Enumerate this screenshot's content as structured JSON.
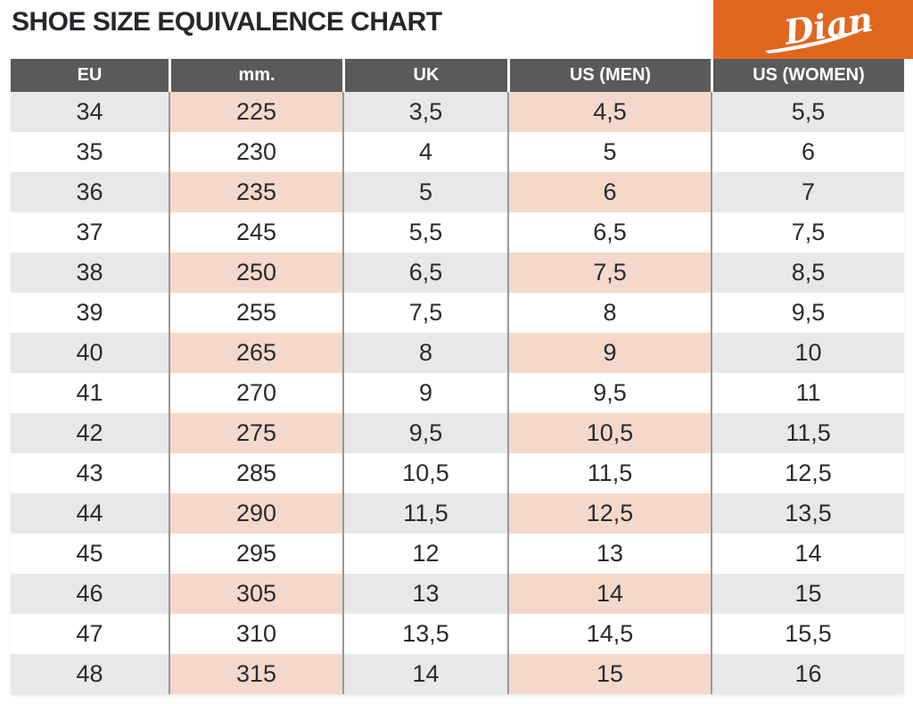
{
  "title": "SHOE SIZE EQUIVALENCE CHART",
  "logo": {
    "text": "Dian",
    "background": "#E0671E"
  },
  "chart_data": {
    "type": "table",
    "title": "SHOE SIZE EQUIVALENCE CHART",
    "columns": [
      "EU",
      "mm.",
      "UK",
      "US (MEN)",
      "US (WOMEN)"
    ],
    "rows": [
      [
        "34",
        "225",
        "3,5",
        "4,5",
        "5,5"
      ],
      [
        "35",
        "230",
        "4",
        "5",
        "6"
      ],
      [
        "36",
        "235",
        "5",
        "6",
        "7"
      ],
      [
        "37",
        "245",
        "5,5",
        "6,5",
        "7,5"
      ],
      [
        "38",
        "250",
        "6,5",
        "7,5",
        "8,5"
      ],
      [
        "39",
        "255",
        "7,5",
        "8",
        "9,5"
      ],
      [
        "40",
        "265",
        "8",
        "9",
        "10"
      ],
      [
        "41",
        "270",
        "9",
        "9,5",
        "11"
      ],
      [
        "42",
        "275",
        "9,5",
        "10,5",
        "11,5"
      ],
      [
        "43",
        "285",
        "10,5",
        "11,5",
        "12,5"
      ],
      [
        "44",
        "290",
        "11,5",
        "12,5",
        "13,5"
      ],
      [
        "45",
        "295",
        "12",
        "13",
        "14"
      ],
      [
        "46",
        "305",
        "13",
        "14",
        "15"
      ],
      [
        "47",
        "310",
        "13,5",
        "14,5",
        "15,5"
      ],
      [
        "48",
        "315",
        "14",
        "15",
        "16"
      ]
    ],
    "layout_hints": {
      "shaded_rows": "every other row starting with EU 34",
      "gray_shaded_columns": [
        "EU",
        "UK",
        "US (WOMEN)"
      ],
      "pink_shaded_columns": [
        "mm.",
        "US (MEN)"
      ]
    }
  },
  "colors": {
    "accent_orange": "#E0671E",
    "header_background": "#595A5C",
    "header_text": "#FFFFFF",
    "row_alt_gray": "#E8E8E9",
    "row_alt_pink": "#F4D9CB",
    "body_text": "#2A2B2F",
    "column_divider": "#95979A"
  }
}
